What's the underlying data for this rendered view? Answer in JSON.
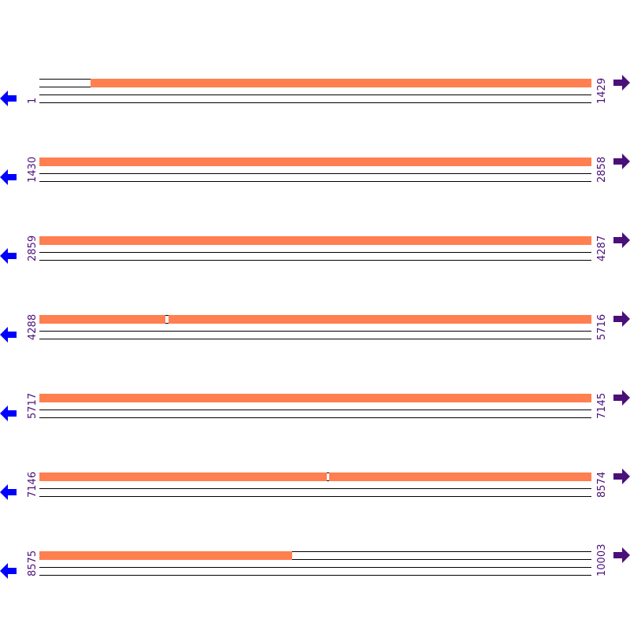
{
  "colors": {
    "feature": "#ff7f50",
    "line": "#000000",
    "label": "#4b0f7a",
    "left_arrow": "#0000ff",
    "right_arrow": "#4b0f7a"
  },
  "icons": {
    "left": "arrow-left-icon",
    "right": "arrow-right-icon"
  },
  "rows": [
    {
      "start": "1",
      "end": "1429",
      "s": 1,
      "e": 1429,
      "features": [
        [
          134,
          1429
        ]
      ]
    },
    {
      "start": "1430",
      "end": "2858",
      "s": 1430,
      "e": 2858,
      "features": [
        [
          1430,
          2858
        ]
      ]
    },
    {
      "start": "2859",
      "end": "4287",
      "s": 2859,
      "e": 4287,
      "features": [
        [
          2859,
          4287
        ]
      ]
    },
    {
      "start": "4288",
      "end": "5716",
      "s": 4288,
      "e": 5716,
      "features": [
        [
          4288,
          4614
        ],
        [
          4623,
          5716
        ]
      ]
    },
    {
      "start": "5717",
      "end": "7145",
      "s": 5717,
      "e": 7145,
      "features": [
        [
          5717,
          7145
        ]
      ]
    },
    {
      "start": "7146",
      "end": "8574",
      "s": 7146,
      "e": 8574,
      "features": [
        [
          7146,
          7889
        ],
        [
          7897,
          8574
        ]
      ]
    },
    {
      "start": "8575",
      "end": "10003",
      "s": 8575,
      "e": 10003,
      "features": [
        [
          8575,
          9228
        ]
      ]
    }
  ]
}
